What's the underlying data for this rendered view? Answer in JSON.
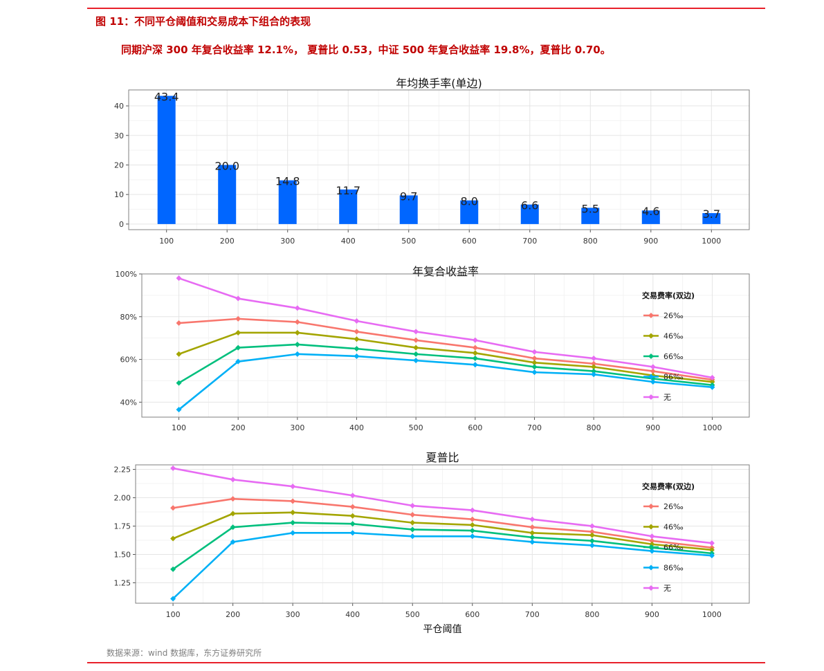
{
  "figure": {
    "title": "图 11：不同平仓阈值和交易成本下组合的表现",
    "note": "同期沪深 300 年复合收益率 12.1%， 夏普比 0.53，中证 500 年复合收益率 19.8%，夏普比 0.70。",
    "source": "数据来源：wind 数据库，东方证券研究所"
  },
  "colors": {
    "rule": "#e8202a",
    "title_text": "#c00000",
    "bar": "#0066ff",
    "panel_border": "#7f7f7f",
    "grid_major": "#e5e5e5",
    "grid_minor": "#f3f3f3"
  },
  "chart_data": [
    {
      "type": "bar",
      "title": "年均换手率(单边)",
      "xlabel": "",
      "ylabel": "",
      "categories": [
        "100",
        "200",
        "300",
        "400",
        "500",
        "600",
        "700",
        "800",
        "900",
        "1000"
      ],
      "values": [
        43.4,
        20.0,
        14.8,
        11.7,
        9.7,
        8.0,
        6.6,
        5.5,
        4.6,
        3.7
      ],
      "value_labels": [
        "43.4",
        "20.0",
        "14.8",
        "11.7",
        "9.7",
        "8.0",
        "6.6",
        "5.5",
        "4.6",
        "3.7"
      ],
      "yticks": [
        0,
        10,
        20,
        30,
        40
      ],
      "ytick_labels": [
        "0",
        "10",
        "20",
        "30",
        "40"
      ],
      "ylim": [
        -1.9,
        45.4
      ],
      "grid": true
    },
    {
      "type": "line",
      "title": "年复合收益率",
      "xlabel": "",
      "ylabel": "",
      "legend_title": "交易费率(双边)",
      "legend_position": "right",
      "x": [
        "100",
        "200",
        "300",
        "400",
        "500",
        "600",
        "700",
        "800",
        "900",
        "1000"
      ],
      "series": [
        {
          "name": "26‰",
          "color": "#f8766d",
          "values": [
            77,
            79,
            77.5,
            73,
            69,
            65.5,
            60.5,
            58,
            54.5,
            50.5
          ]
        },
        {
          "name": "46‰",
          "color": "#a3a500",
          "values": [
            62.5,
            72.5,
            72.5,
            69.5,
            65.5,
            63,
            58.5,
            56.5,
            52.5,
            49.5
          ]
        },
        {
          "name": "66‰",
          "color": "#00bf7d",
          "values": [
            49,
            65.5,
            67,
            65,
            62.5,
            60.5,
            56.5,
            54.5,
            51,
            48
          ]
        },
        {
          "name": "86‰",
          "color": "#00b0f6",
          "values": [
            36.5,
            59,
            62.5,
            61.5,
            59.5,
            57.5,
            54,
            53,
            49.5,
            47
          ]
        },
        {
          "name": "无",
          "color": "#e76bf3",
          "values": [
            98,
            88.5,
            84,
            78,
            73,
            69,
            63.5,
            60.5,
            56.5,
            51.5
          ]
        }
      ],
      "yticks": [
        40,
        60,
        80,
        100
      ],
      "ytick_labels": [
        "40%",
        "60%",
        "80%",
        "100%"
      ],
      "ylim": [
        33,
        100
      ],
      "grid": true
    },
    {
      "type": "line",
      "title": "夏普比",
      "xlabel": "平仓阈值",
      "ylabel": "",
      "legend_title": "交易费率(双边)",
      "legend_position": "right",
      "x": [
        "100",
        "200",
        "300",
        "400",
        "500",
        "600",
        "700",
        "800",
        "900",
        "1000"
      ],
      "series": [
        {
          "name": "26‰",
          "color": "#f8766d",
          "values": [
            1.91,
            1.99,
            1.97,
            1.92,
            1.85,
            1.81,
            1.74,
            1.7,
            1.62,
            1.56
          ]
        },
        {
          "name": "46‰",
          "color": "#a3a500",
          "values": [
            1.64,
            1.86,
            1.87,
            1.84,
            1.78,
            1.76,
            1.69,
            1.67,
            1.59,
            1.54
          ]
        },
        {
          "name": "66‰",
          "color": "#00bf7d",
          "values": [
            1.37,
            1.74,
            1.78,
            1.77,
            1.72,
            1.71,
            1.65,
            1.62,
            1.56,
            1.51
          ]
        },
        {
          "name": "86‰",
          "color": "#00b0f6",
          "values": [
            1.11,
            1.61,
            1.69,
            1.69,
            1.66,
            1.66,
            1.61,
            1.58,
            1.53,
            1.49
          ]
        },
        {
          "name": "无",
          "color": "#e76bf3",
          "values": [
            2.26,
            2.16,
            2.1,
            2.02,
            1.93,
            1.89,
            1.81,
            1.75,
            1.66,
            1.6
          ]
        }
      ],
      "yticks": [
        1.25,
        1.5,
        1.75,
        2.0,
        2.25
      ],
      "ytick_labels": [
        "1.25",
        "1.50",
        "1.75",
        "2.00",
        "2.25"
      ],
      "ylim": [
        1.07,
        2.29
      ],
      "grid": true
    }
  ]
}
